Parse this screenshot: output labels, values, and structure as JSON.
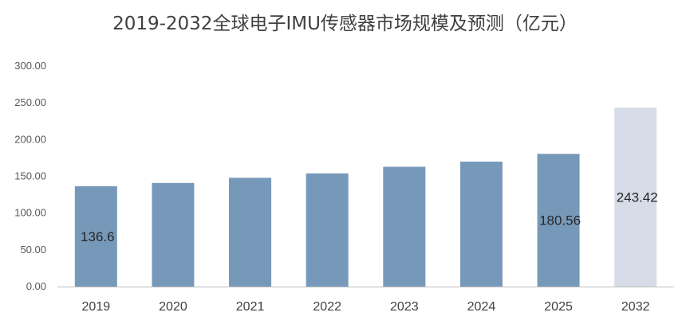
{
  "chart_data": {
    "type": "bar",
    "title": "2019-2032全球电子IMU传感器市场规模及预测（亿元）",
    "xlabel": "",
    "ylabel": "",
    "ylim": [
      0,
      300
    ],
    "yticks": [
      "0.00",
      "50.00",
      "100.00",
      "150.00",
      "200.00",
      "250.00",
      "300.00"
    ],
    "categories": [
      "2019",
      "2020",
      "2021",
      "2022",
      "2023",
      "2024",
      "2025",
      "2032"
    ],
    "values": [
      136.6,
      141,
      148,
      154,
      163,
      170,
      180.56,
      243.42
    ],
    "data_labels": [
      "136.6",
      "",
      "",
      "",
      "",
      "",
      "180.56",
      "243.42"
    ],
    "colors": {
      "bar": "#7799b9",
      "forecast_bar": "#d6dde8",
      "axis": "#bfbfbf"
    },
    "grid": false,
    "legend": "none"
  }
}
